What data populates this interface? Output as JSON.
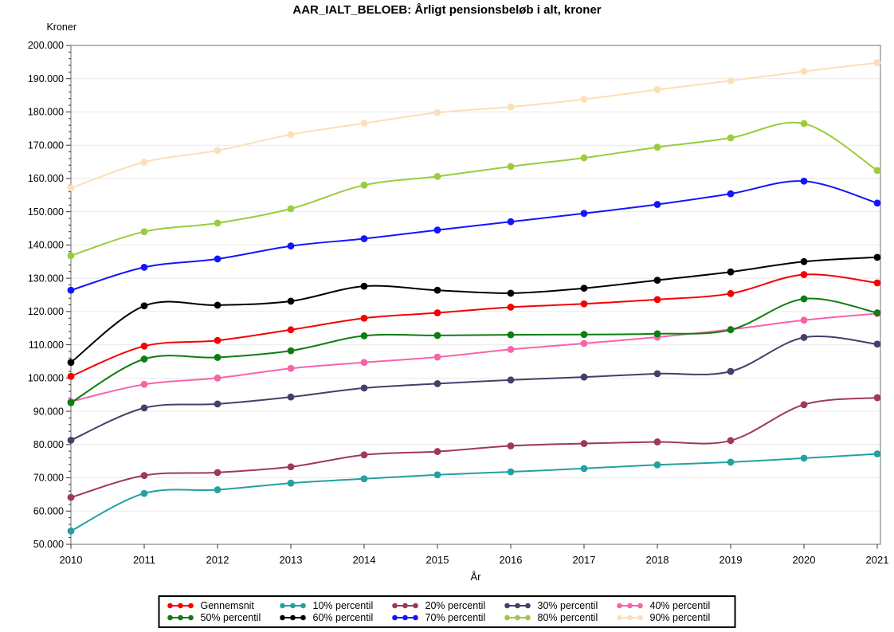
{
  "page": {
    "background": "#ffffff"
  },
  "chart_data": {
    "type": "line",
    "title": "AAR_IALT_BELOEB: Årligt pensionsbeløb i alt, kroner",
    "ylabel": "Kroner",
    "xlabel": "År",
    "x": [
      2010,
      2011,
      2012,
      2013,
      2014,
      2015,
      2016,
      2017,
      2018,
      2019,
      2020,
      2021
    ],
    "ylim": [
      50000,
      200000
    ],
    "ytick_step": 10000,
    "ytick_minor_step": 2000,
    "ytick_labels": [
      "50.000",
      "60.000",
      "70.000",
      "80.000",
      "90.000",
      "100.000",
      "110.000",
      "120.000",
      "130.000",
      "140.000",
      "150.000",
      "160.000",
      "170.000",
      "180.000",
      "190.000",
      "200.000"
    ],
    "grid": "horizontal",
    "legend_position": "bottom-center-box",
    "marker": "filled-circle",
    "series": [
      {
        "name": "Gennemsnit",
        "color": "#f40000",
        "values": [
          100500,
          109600,
          111300,
          114500,
          118000,
          119600,
          121300,
          122300,
          123600,
          125400,
          131100,
          128600
        ]
      },
      {
        "name": "10% percentil",
        "color": "#23a1a0",
        "values": [
          54000,
          65300,
          66400,
          68400,
          69700,
          70900,
          71800,
          72800,
          73900,
          74700,
          75900,
          77200
        ]
      },
      {
        "name": "20% percentil",
        "color": "#9e3a53",
        "values": [
          64100,
          70700,
          71600,
          73300,
          76900,
          77900,
          79600,
          80300,
          80800,
          81200,
          92000,
          94100
        ]
      },
      {
        "name": "30% percentil",
        "color": "#41416b",
        "values": [
          81300,
          91000,
          92200,
          94300,
          97000,
          98300,
          99400,
          100300,
          101300,
          102000,
          112200,
          110200
        ]
      },
      {
        "name": "40% percentil",
        "color": "#f763a9",
        "values": [
          92900,
          98100,
          100000,
          102900,
          104700,
          106300,
          108600,
          110400,
          112300,
          114600,
          117400,
          119400
        ]
      },
      {
        "name": "50% percentil",
        "color": "#0e7e12",
        "values": [
          92600,
          105700,
          106200,
          108200,
          112700,
          112800,
          113000,
          113100,
          113300,
          114500,
          123800,
          119600
        ]
      },
      {
        "name": "60% percentil",
        "color": "#000000",
        "values": [
          104700,
          121700,
          121900,
          123100,
          127600,
          126400,
          125500,
          127000,
          129400,
          131900,
          135000,
          136300
        ]
      },
      {
        "name": "70% percentil",
        "color": "#1414ff",
        "values": [
          126400,
          133300,
          135800,
          139700,
          141900,
          144500,
          147000,
          149500,
          152200,
          155400,
          159200,
          152600
        ]
      },
      {
        "name": "80% percentil",
        "color": "#9bcc3d",
        "values": [
          136800,
          144000,
          146600,
          150900,
          158000,
          160600,
          163600,
          166200,
          169400,
          172200,
          176500,
          162400
        ]
      },
      {
        "name": "90% percentil",
        "color": "#fcdfb7",
        "values": [
          157100,
          164900,
          168400,
          173200,
          176600,
          179800,
          181500,
          183800,
          186700,
          189400,
          192200,
          194800
        ]
      }
    ]
  },
  "style_colors": {
    "gridline": "#e9e9e9",
    "plot_border": "#6e6e6e",
    "tick": "#333333",
    "legend_border": "#000000"
  }
}
